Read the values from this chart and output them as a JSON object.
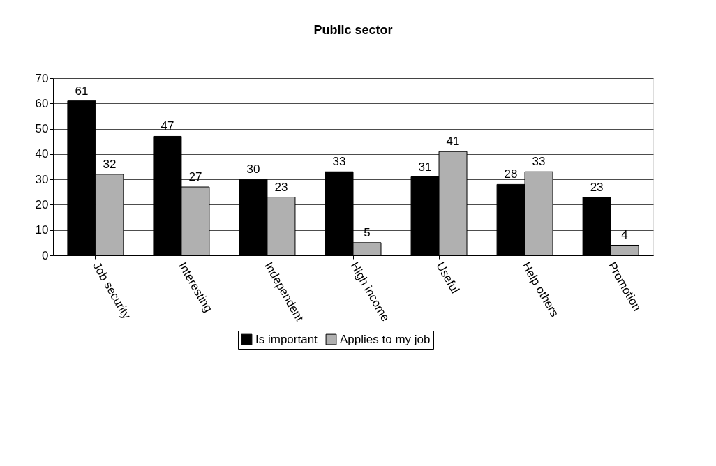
{
  "chart_data": {
    "type": "bar",
    "title": "Public sector",
    "categories": [
      "Job security",
      "Interesting",
      "Independent",
      "High income",
      "Useful",
      "Help others",
      "Promotion"
    ],
    "series": [
      {
        "name": "Is important",
        "color": "#000000",
        "values": [
          61,
          47,
          30,
          33,
          31,
          28,
          23
        ]
      },
      {
        "name": "Applies to my job",
        "color": "#b0b0b0",
        "values": [
          32,
          27,
          23,
          5,
          41,
          33,
          4
        ]
      }
    ],
    "ylim": [
      0,
      70
    ],
    "yticks": [
      0,
      10,
      20,
      30,
      40,
      50,
      60,
      70
    ],
    "grid": "y",
    "legend": "bottom",
    "data_labels": true
  }
}
